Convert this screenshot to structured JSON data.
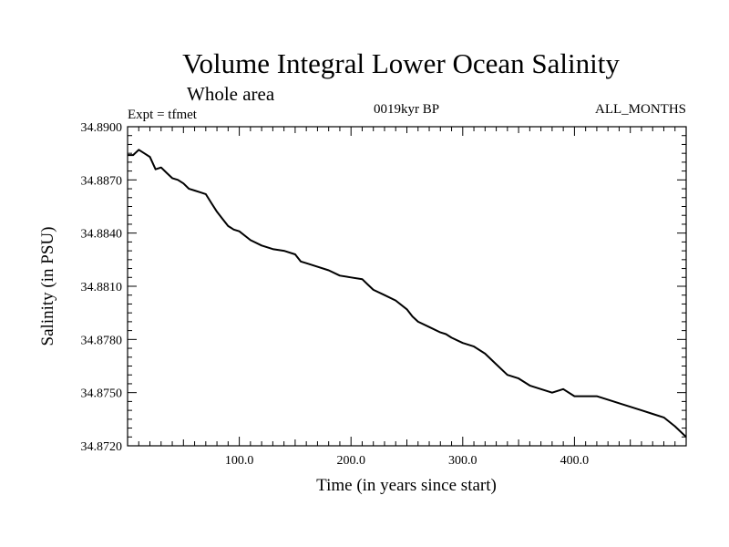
{
  "chart_data": {
    "type": "line",
    "title": "Volume Integral Lower Ocean Salinity",
    "subtitle": "Whole area",
    "experiment_label": "Expt = tfmet",
    "period_label": "0019kyr BP",
    "months_label": "ALL_MONTHS",
    "xlabel": "Time (in years since start)",
    "ylabel": "Salinity (in PSU)",
    "xlim": [
      0,
      500
    ],
    "ylim": [
      34.872,
      34.89
    ],
    "xticks": [
      100,
      200,
      300,
      400
    ],
    "xtick_labels": [
      "100.0",
      "200.0",
      "300.0",
      "400.0"
    ],
    "yticks": [
      34.872,
      34.875,
      34.878,
      34.881,
      34.884,
      34.887,
      34.89
    ],
    "ytick_labels": [
      "34.8720",
      "34.8750",
      "34.8780",
      "34.8810",
      "34.8840",
      "34.8870",
      "34.8900"
    ],
    "grid": false,
    "series": [
      {
        "color": "#000000",
        "points": [
          [
            0,
            34.8884
          ],
          [
            5,
            34.8884
          ],
          [
            10,
            34.8887
          ],
          [
            15,
            34.8885
          ],
          [
            20,
            34.8883
          ],
          [
            25,
            34.8876
          ],
          [
            30,
            34.8877
          ],
          [
            35,
            34.8874
          ],
          [
            40,
            34.8871
          ],
          [
            45,
            34.887
          ],
          [
            50,
            34.8868
          ],
          [
            55,
            34.8865
          ],
          [
            60,
            34.8864
          ],
          [
            65,
            34.8863
          ],
          [
            70,
            34.8862
          ],
          [
            75,
            34.8857
          ],
          [
            80,
            34.8852
          ],
          [
            85,
            34.8848
          ],
          [
            90,
            34.8844
          ],
          [
            95,
            34.8842
          ],
          [
            100,
            34.8841
          ],
          [
            110,
            34.8836
          ],
          [
            120,
            34.8833
          ],
          [
            130,
            34.8831
          ],
          [
            140,
            34.883
          ],
          [
            150,
            34.8828
          ],
          [
            155,
            34.8824
          ],
          [
            160,
            34.8823
          ],
          [
            170,
            34.8821
          ],
          [
            180,
            34.8819
          ],
          [
            190,
            34.8816
          ],
          [
            200,
            34.8815
          ],
          [
            210,
            34.8814
          ],
          [
            215,
            34.8811
          ],
          [
            220,
            34.8808
          ],
          [
            230,
            34.8805
          ],
          [
            240,
            34.8802
          ],
          [
            250,
            34.8797
          ],
          [
            255,
            34.8793
          ],
          [
            260,
            34.879
          ],
          [
            270,
            34.8787
          ],
          [
            280,
            34.8784
          ],
          [
            285,
            34.8783
          ],
          [
            290,
            34.8781
          ],
          [
            300,
            34.8778
          ],
          [
            310,
            34.8776
          ],
          [
            320,
            34.8772
          ],
          [
            330,
            34.8766
          ],
          [
            340,
            34.876
          ],
          [
            350,
            34.8758
          ],
          [
            360,
            34.8754
          ],
          [
            370,
            34.8752
          ],
          [
            380,
            34.875
          ],
          [
            390,
            34.8752
          ],
          [
            400,
            34.8748
          ],
          [
            410,
            34.8748
          ],
          [
            420,
            34.8748
          ],
          [
            430,
            34.8746
          ],
          [
            440,
            34.8744
          ],
          [
            450,
            34.8742
          ],
          [
            460,
            34.874
          ],
          [
            470,
            34.8738
          ],
          [
            480,
            34.8736
          ],
          [
            490,
            34.8731
          ],
          [
            500,
            34.8725
          ]
        ]
      }
    ]
  }
}
